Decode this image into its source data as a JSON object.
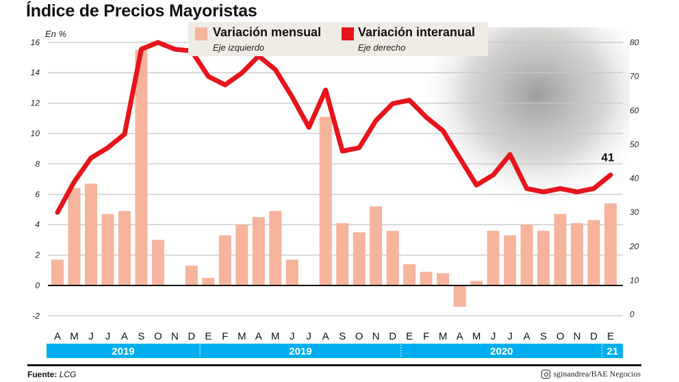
{
  "title": "Índice de Precios Mayoristas",
  "unit_label": "En %",
  "legend": [
    {
      "label": "Variación mensual",
      "sub": "Eje izquierdo",
      "color": "#f5b49b"
    },
    {
      "label": "Variación interanual",
      "sub": "Eje derecho",
      "color": "#e8141c"
    }
  ],
  "source_label": "Fuente:",
  "source_value": "LCG",
  "credit": "sginandrea/BAE Negocios",
  "credit_icon": "instagram-icon",
  "colors": {
    "bar": "#f5b49b",
    "line": "#e8141c",
    "year_band": "#00aeef",
    "grid": "#c8c8c8"
  },
  "chart_data": {
    "type": "bar+line",
    "categories": [
      "A",
      "M",
      "J",
      "J",
      "A",
      "S",
      "O",
      "N",
      "D",
      "E",
      "F",
      "M",
      "A",
      "M",
      "J",
      "J",
      "A",
      "S",
      "O",
      "N",
      "D",
      "E",
      "F",
      "M",
      "A",
      "M",
      "J",
      "J",
      "A",
      "S",
      "O",
      "N",
      "D",
      "E"
    ],
    "year_groups": [
      {
        "label": "2019",
        "months": 9
      },
      {
        "label": "2019",
        "months": 12
      },
      {
        "label": "2020",
        "months": 12
      },
      {
        "label": "21",
        "months": 1
      }
    ],
    "series": [
      {
        "name": "Variación mensual",
        "type": "bar",
        "axis": "left",
        "values": [
          1.7,
          6.4,
          6.7,
          4.7,
          4.9,
          15.5,
          3.0,
          null,
          1.3,
          0.5,
          3.3,
          4.0,
          4.5,
          4.9,
          1.7,
          null,
          11.1,
          4.1,
          3.5,
          5.2,
          3.6,
          1.4,
          0.9,
          0.8,
          -1.4,
          0.3,
          3.6,
          3.3,
          4.0,
          3.6,
          4.7,
          4.1,
          4.3,
          5.4
        ]
      },
      {
        "name": "Variación interanual",
        "type": "line",
        "axis": "right",
        "values": [
          30,
          39,
          46,
          49,
          53,
          78,
          80,
          78,
          77.5,
          70,
          67.5,
          71,
          76,
          72,
          64,
          55,
          66,
          48,
          49,
          57,
          62,
          63,
          58,
          54,
          46,
          38,
          41,
          47,
          37,
          36,
          37,
          36,
          37,
          41
        ]
      }
    ],
    "left_axis": {
      "ylim": [
        -2,
        16
      ],
      "ticks": [
        16,
        14,
        12,
        10,
        8,
        6,
        4,
        2,
        0,
        -2
      ]
    },
    "right_axis": {
      "ylim": [
        0,
        80
      ],
      "ticks": [
        80,
        70,
        60,
        50,
        40,
        30,
        20,
        10,
        0
      ]
    },
    "annotations": [
      {
        "category_index": 33,
        "series": "Variación interanual",
        "text": "41"
      }
    ],
    "grid": true,
    "legend_position": "top-center"
  }
}
